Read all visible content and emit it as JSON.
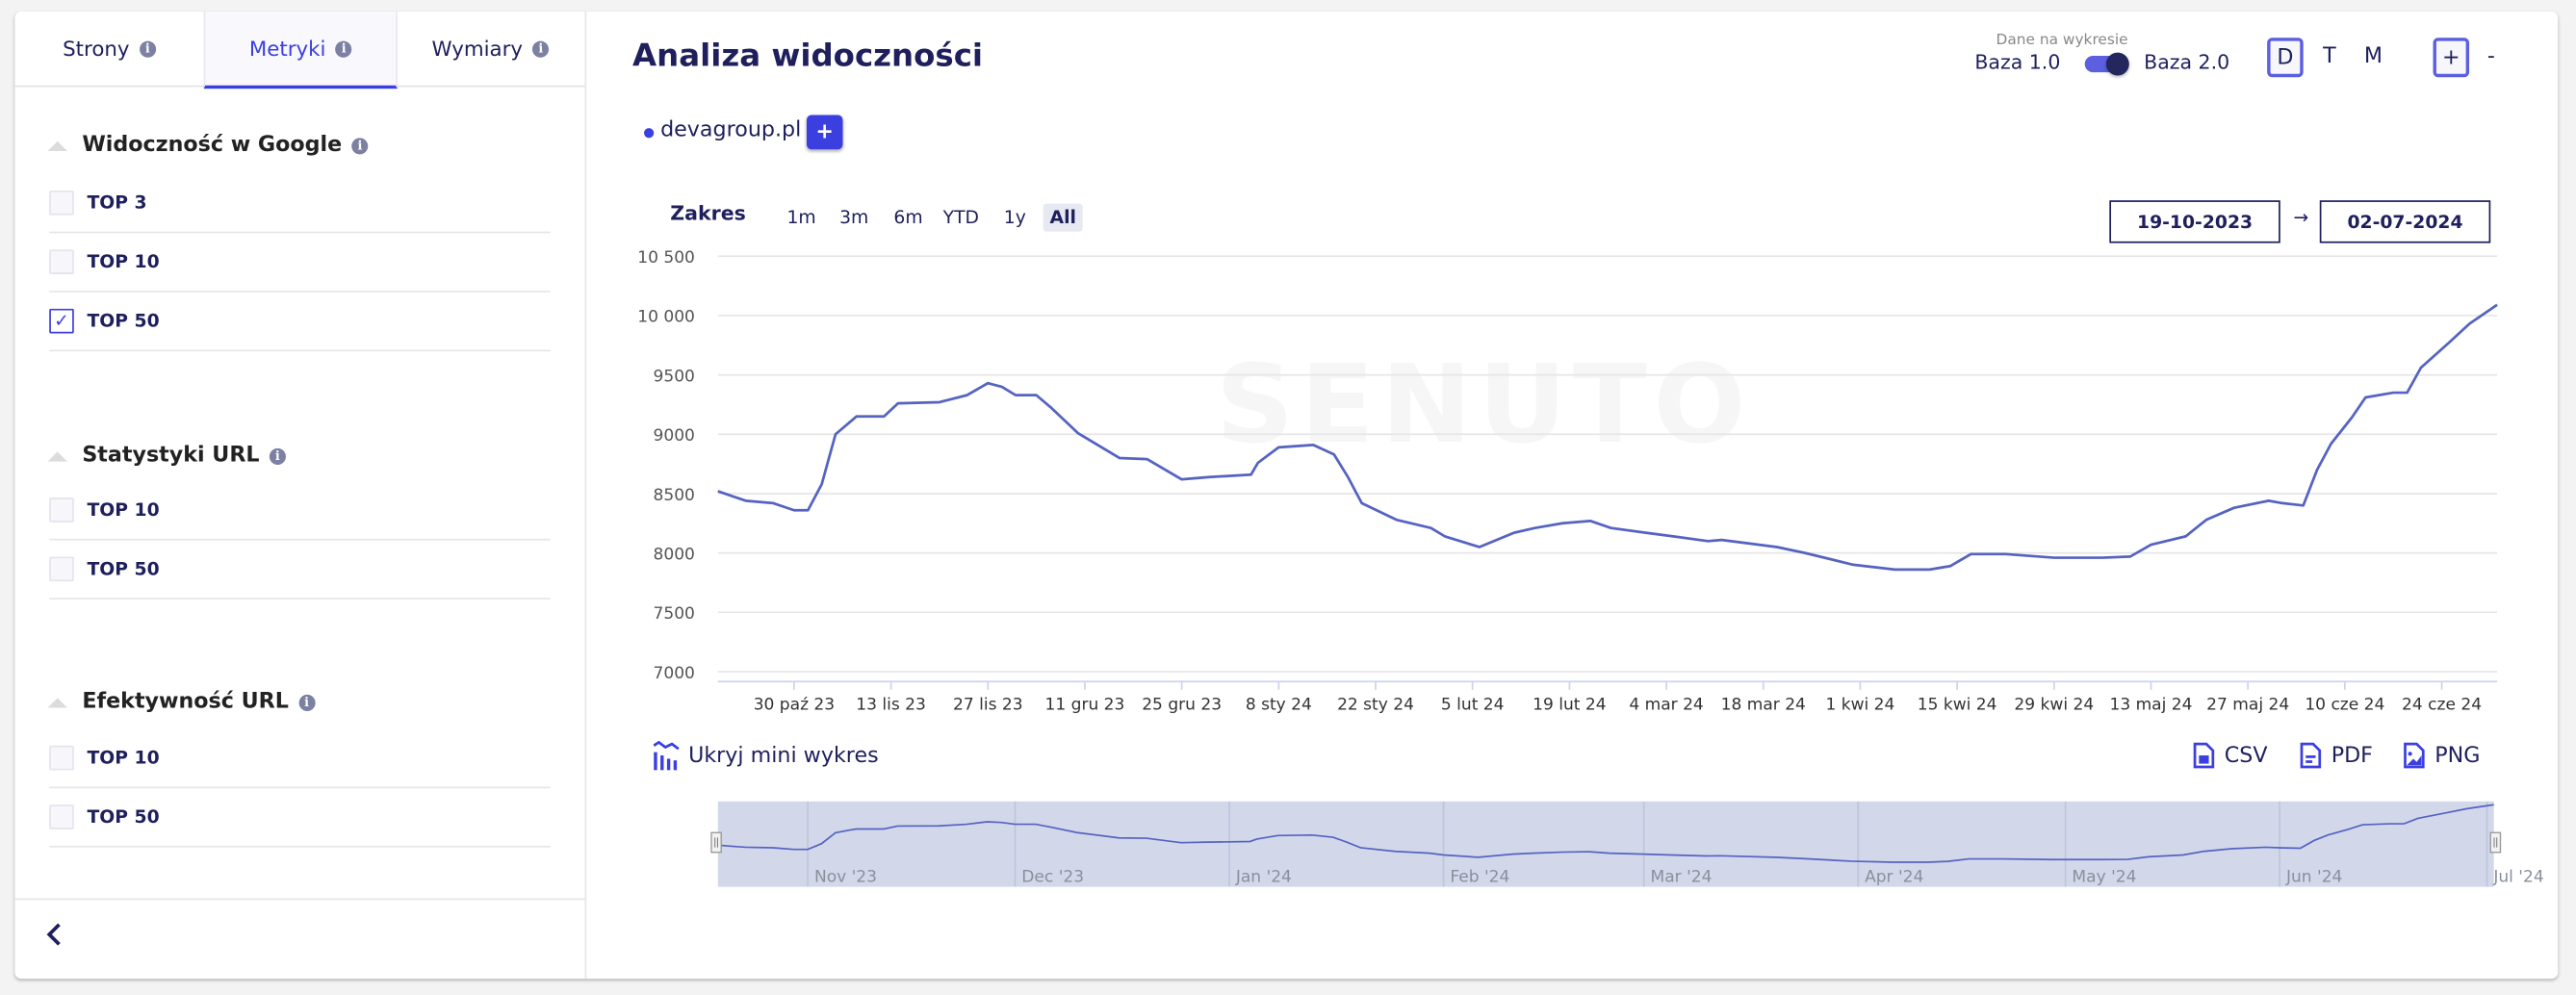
{
  "sidebar": {
    "tabs": [
      {
        "label": "Strony",
        "active": false
      },
      {
        "label": "Metryki",
        "active": true
      },
      {
        "label": "Wymiary",
        "active": false
      }
    ],
    "sections": [
      {
        "title": "Widoczność w Google",
        "items": [
          {
            "label": "TOP 3",
            "checked": false
          },
          {
            "label": "TOP 10",
            "checked": false
          },
          {
            "label": "TOP 50",
            "checked": true
          }
        ]
      },
      {
        "title": "Statystyki URL",
        "items": [
          {
            "label": "TOP 10",
            "checked": false
          },
          {
            "label": "TOP 50",
            "checked": false
          }
        ]
      },
      {
        "title": "Efektywność URL",
        "items": [
          {
            "label": "TOP 10",
            "checked": false
          },
          {
            "label": "TOP 50",
            "checked": false
          }
        ]
      }
    ],
    "collapse_icon": "chevron-left-icon"
  },
  "main": {
    "title": "Analiza widoczności",
    "domain_label": "devagroup.pl",
    "add_label": "+",
    "data_source": {
      "caption": "Dane na wykresie",
      "left": "Baza 1.0",
      "right": "Baza 2.0",
      "selected": "Baza 2.0"
    },
    "granularity": [
      {
        "label": "D",
        "active": true
      },
      {
        "label": "T",
        "active": false
      },
      {
        "label": "M",
        "active": false
      }
    ],
    "zoom_in": "+",
    "zoom_out": "-",
    "range_label": "Zakres",
    "ranges": [
      {
        "label": "1m",
        "active": false
      },
      {
        "label": "3m",
        "active": false
      },
      {
        "label": "6m",
        "active": false
      },
      {
        "label": "YTD",
        "active": false
      },
      {
        "label": "1y",
        "active": false
      },
      {
        "label": "All",
        "active": true
      }
    ],
    "date_from": "19-10-2023",
    "date_arrow": "→",
    "date_to": "02-07-2024",
    "mini_chart_toggle": "Ukryj mini wykres",
    "exports": [
      {
        "label": "CSV",
        "icon": "csv-file-icon"
      },
      {
        "label": "PDF",
        "icon": "pdf-file-icon"
      },
      {
        "label": "PNG",
        "icon": "image-file-icon"
      }
    ],
    "watermark": "SENUTO"
  },
  "colors": {
    "accent": "#3b3fe0",
    "line": "#5563c1",
    "navy": "#1e1f5c",
    "navigator_fill": "#d2d8ea"
  },
  "chart_data": {
    "type": "line",
    "title": "",
    "xlabel": "",
    "ylabel": "",
    "xlim": [
      "2023-10-19",
      "2024-07-02"
    ],
    "ylim": [
      7000,
      10500
    ],
    "grid": true,
    "y_ticks": [
      {
        "value": 10500,
        "label": "10 500"
      },
      {
        "value": 10000,
        "label": "10 000"
      },
      {
        "value": 9500,
        "label": "9500"
      },
      {
        "value": 9000,
        "label": "9000"
      },
      {
        "value": 8500,
        "label": "8500"
      },
      {
        "value": 8000,
        "label": "8000"
      },
      {
        "value": 7500,
        "label": "7500"
      },
      {
        "value": 7000,
        "label": "7000"
      }
    ],
    "x_ticks": [
      {
        "date": "2023-10-30",
        "label": "30 paź 23"
      },
      {
        "date": "2023-11-13",
        "label": "13 lis 23"
      },
      {
        "date": "2023-11-27",
        "label": "27 lis 23"
      },
      {
        "date": "2023-12-11",
        "label": "11 gru 23"
      },
      {
        "date": "2023-12-25",
        "label": "25 gru 23"
      },
      {
        "date": "2024-01-08",
        "label": "8 sty 24"
      },
      {
        "date": "2024-01-22",
        "label": "22 sty 24"
      },
      {
        "date": "2024-02-05",
        "label": "5 lut 24"
      },
      {
        "date": "2024-02-19",
        "label": "19 lut 24"
      },
      {
        "date": "2024-03-04",
        "label": "4 mar 24"
      },
      {
        "date": "2024-03-18",
        "label": "18 mar 24"
      },
      {
        "date": "2024-04-01",
        "label": "1 kwi 24"
      },
      {
        "date": "2024-04-15",
        "label": "15 kwi 24"
      },
      {
        "date": "2024-04-29",
        "label": "29 kwi 24"
      },
      {
        "date": "2024-05-13",
        "label": "13 maj 24"
      },
      {
        "date": "2024-05-27",
        "label": "27 maj 24"
      },
      {
        "date": "2024-06-10",
        "label": "10 cze 24"
      },
      {
        "date": "2024-06-24",
        "label": "24 cze 24"
      }
    ],
    "navigator_ticks": [
      {
        "date": "2023-11-01",
        "label": "Nov '23"
      },
      {
        "date": "2023-12-01",
        "label": "Dec '23"
      },
      {
        "date": "2024-01-01",
        "label": "Jan '24"
      },
      {
        "date": "2024-02-01",
        "label": "Feb '24"
      },
      {
        "date": "2024-03-01",
        "label": "Mar '24"
      },
      {
        "date": "2024-04-01",
        "label": "Apr '24"
      },
      {
        "date": "2024-05-01",
        "label": "May '24"
      },
      {
        "date": "2024-06-01",
        "label": "Jun '24"
      },
      {
        "date": "2024-07-01",
        "label": "Jul '24"
      }
    ],
    "series": [
      {
        "points": [
          [
            "2023-10-19",
            8520
          ],
          [
            "2023-10-21",
            8480
          ],
          [
            "2023-10-23",
            8440
          ],
          [
            "2023-10-27",
            8420
          ],
          [
            "2023-10-30",
            8360
          ],
          [
            "2023-11-01",
            8360
          ],
          [
            "2023-11-03",
            8580
          ],
          [
            "2023-11-04",
            8790
          ],
          [
            "2023-11-05",
            9000
          ],
          [
            "2023-11-07",
            9100
          ],
          [
            "2023-11-08",
            9150
          ],
          [
            "2023-11-12",
            9150
          ],
          [
            "2023-11-14",
            9260
          ],
          [
            "2023-11-20",
            9270
          ],
          [
            "2023-11-24",
            9330
          ],
          [
            "2023-11-27",
            9430
          ],
          [
            "2023-11-29",
            9400
          ],
          [
            "2023-12-01",
            9330
          ],
          [
            "2023-12-04",
            9330
          ],
          [
            "2023-12-06",
            9230
          ],
          [
            "2023-12-10",
            9010
          ],
          [
            "2023-12-16",
            8800
          ],
          [
            "2023-12-20",
            8790
          ],
          [
            "2023-12-25",
            8620
          ],
          [
            "2023-12-29",
            8640
          ],
          [
            "2024-01-04",
            8660
          ],
          [
            "2024-01-05",
            8760
          ],
          [
            "2024-01-08",
            8890
          ],
          [
            "2024-01-13",
            8910
          ],
          [
            "2024-01-16",
            8830
          ],
          [
            "2024-01-18",
            8640
          ],
          [
            "2024-01-20",
            8420
          ],
          [
            "2024-01-25",
            8280
          ],
          [
            "2024-01-30",
            8210
          ],
          [
            "2024-02-01",
            8140
          ],
          [
            "2024-02-06",
            8050
          ],
          [
            "2024-02-11",
            8170
          ],
          [
            "2024-02-14",
            8210
          ],
          [
            "2024-02-18",
            8250
          ],
          [
            "2024-02-22",
            8270
          ],
          [
            "2024-02-25",
            8210
          ],
          [
            "2024-03-01",
            8170
          ],
          [
            "2024-03-05",
            8140
          ],
          [
            "2024-03-10",
            8100
          ],
          [
            "2024-03-12",
            8110
          ],
          [
            "2024-03-20",
            8050
          ],
          [
            "2024-03-24",
            8000
          ],
          [
            "2024-03-31",
            7900
          ],
          [
            "2024-04-06",
            7860
          ],
          [
            "2024-04-11",
            7860
          ],
          [
            "2024-04-14",
            7890
          ],
          [
            "2024-04-17",
            7990
          ],
          [
            "2024-04-22",
            7990
          ],
          [
            "2024-04-29",
            7960
          ],
          [
            "2024-05-06",
            7960
          ],
          [
            "2024-05-10",
            7970
          ],
          [
            "2024-05-13",
            8070
          ],
          [
            "2024-05-18",
            8140
          ],
          [
            "2024-05-21",
            8280
          ],
          [
            "2024-05-25",
            8380
          ],
          [
            "2024-05-30",
            8440
          ],
          [
            "2024-06-01",
            8420
          ],
          [
            "2024-06-04",
            8400
          ],
          [
            "2024-06-06",
            8700
          ],
          [
            "2024-06-08",
            8920
          ],
          [
            "2024-06-11",
            9140
          ],
          [
            "2024-06-13",
            9310
          ],
          [
            "2024-06-17",
            9350
          ],
          [
            "2024-06-19",
            9350
          ],
          [
            "2024-06-21",
            9560
          ],
          [
            "2024-06-25",
            9770
          ],
          [
            "2024-06-28",
            9930
          ],
          [
            "2024-07-02",
            10090
          ]
        ]
      }
    ]
  }
}
